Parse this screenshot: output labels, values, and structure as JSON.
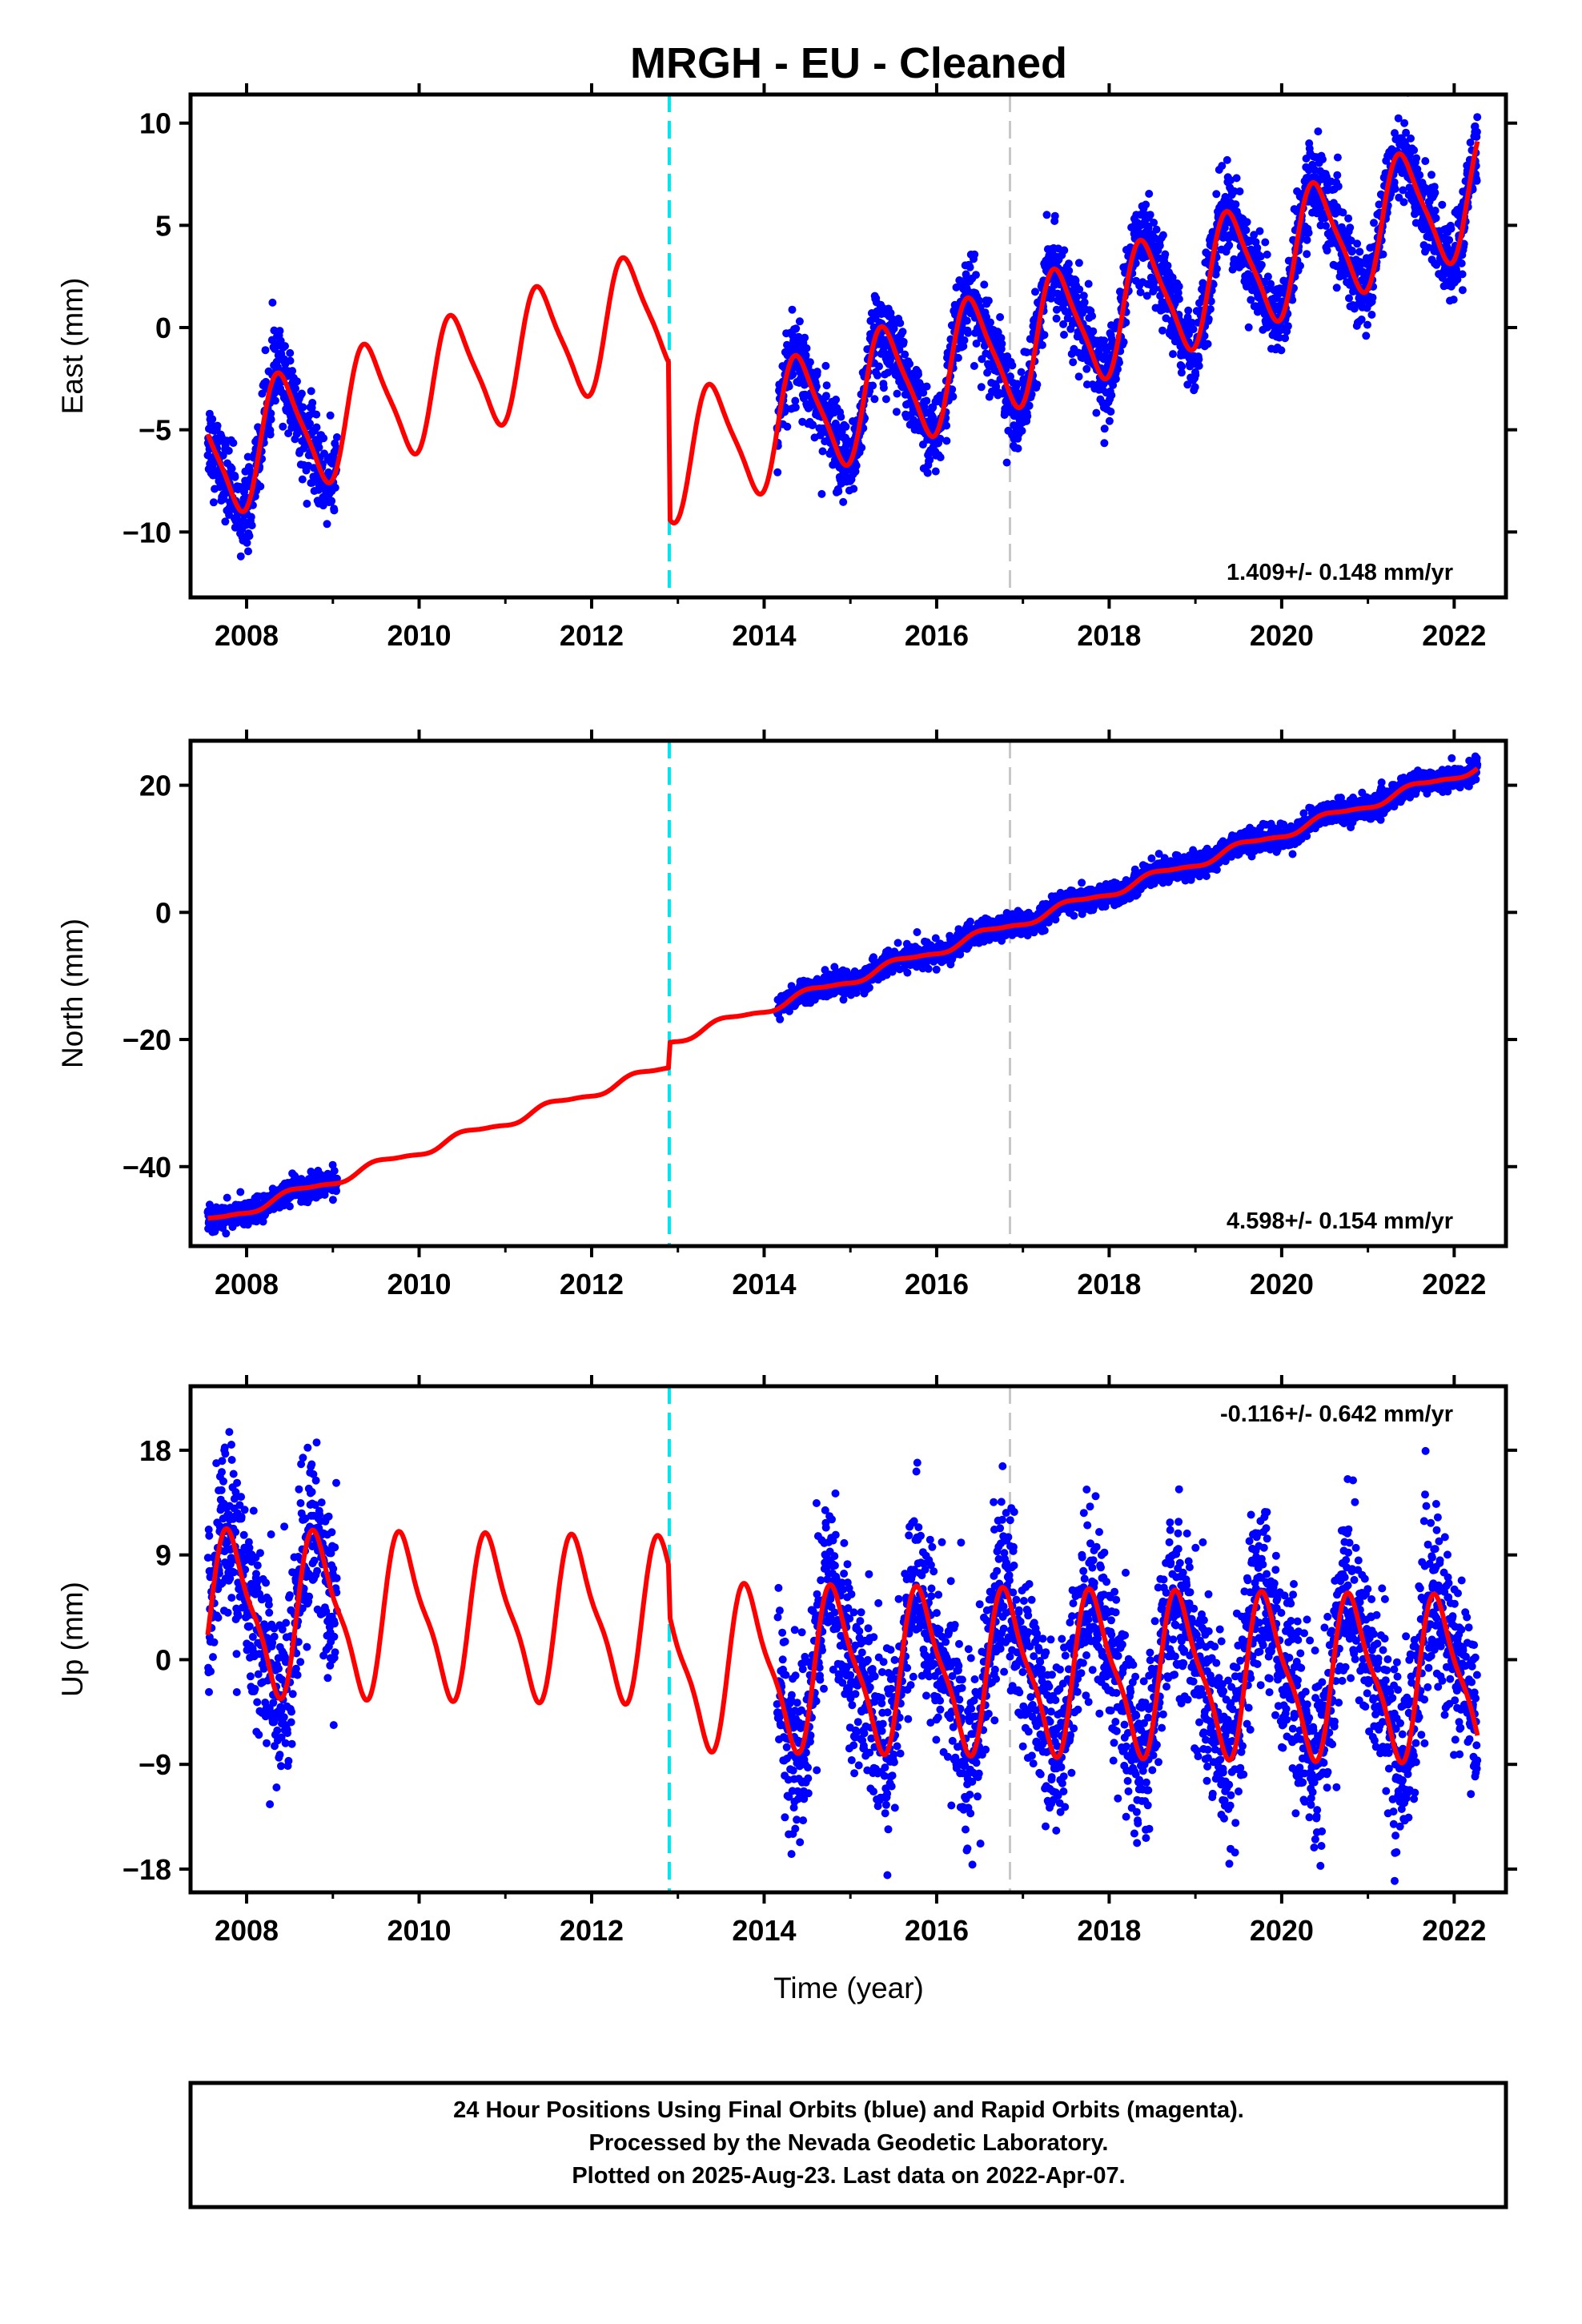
{
  "colors": {
    "daily_points": "#0000ff",
    "model_line": "#ff0000",
    "equipment_change_line": "#00e5ee",
    "event_line": "#c8c8c8",
    "frame": "#000000"
  },
  "chart_data": {
    "type": "scatter",
    "title": "MRGH  - EU - Cleaned",
    "xlabel": "Time (year)",
    "xlim": [
      2007.35,
      2022.6
    ],
    "x_ticks": [
      2008,
      2010,
      2012,
      2014,
      2016,
      2018,
      2020,
      2022
    ],
    "x_tick_labels": [
      "2008",
      "2010",
      "2012",
      "2014",
      "2016",
      "2018",
      "2020",
      "2022"
    ],
    "equipment_change_epoch": 2012.9,
    "event_epoch": 2016.85,
    "data_segments": [
      [
        2007.55,
        2009.05
      ],
      [
        2014.15,
        2022.27
      ]
    ],
    "panels": [
      {
        "id": "east",
        "ylabel": "East (mm)",
        "ylim": [
          -13.2,
          11.4
        ],
        "y_ticks": [
          10,
          5,
          0,
          -5,
          -10
        ],
        "y_tick_labels": [
          "10",
          "5",
          "0",
          "−5",
          "−10"
        ],
        "rate_label": "1.409+/- 0.148 mm/yr",
        "model": {
          "rate": 1.409,
          "intercept": -6.4,
          "ref_epoch": 2007.6,
          "offset_at_break": -7.6,
          "seasonal_amp": 2.9,
          "seasonal_phase": 0.16,
          "semiannual_amp": 0.6
        },
        "scatter_sigma": 1.0
      },
      {
        "id": "north",
        "ylabel": "North (mm)",
        "ylim": [
          -52.5,
          27.0
        ],
        "y_ticks": [
          20,
          0,
          -20,
          -40
        ],
        "y_tick_labels": [
          "20",
          "0",
          "−20",
          "−40"
        ],
        "rate_label": "4.598+/- 0.154 mm/yr",
        "model": {
          "rate": 4.598,
          "intercept": -48.6,
          "ref_epoch": 2007.6,
          "offset_at_break": 4.0,
          "seasonal_amp": 0.7,
          "seasonal_phase": 0.3,
          "semiannual_amp": 0.2
        },
        "scatter_sigma": 0.9
      },
      {
        "id": "up",
        "ylabel": "Up (mm)",
        "ylim": [
          -20.0,
          23.5
        ],
        "y_ticks": [
          18,
          9,
          0,
          -9,
          -18
        ],
        "y_tick_labels": [
          "18",
          "9",
          "0",
          "−9",
          "−18"
        ],
        "rate_label": "-0.116+/- 0.642 mm/yr",
        "model": {
          "rate": -0.116,
          "intercept": 4.0,
          "ref_epoch": 2007.6,
          "offset_at_break": -4.0,
          "seasonal_amp": 6.5,
          "seasonal_phase": 0.58,
          "semiannual_amp": 1.8
        },
        "scatter_sigma": 3.8
      }
    ]
  },
  "footer": {
    "line1": "24 Hour Positions Using Final Orbits (blue) and Rapid Orbits (magenta).",
    "line2": "Processed by the Nevada Geodetic Laboratory.",
    "line3": "Plotted on 2025-Aug-23. Last data on 2022-Apr-07."
  }
}
